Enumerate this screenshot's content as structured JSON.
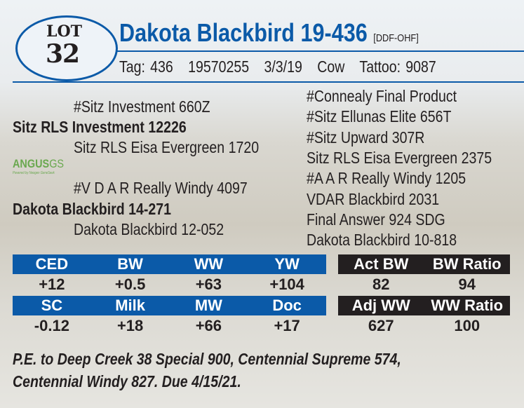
{
  "lot": {
    "label": "LOT",
    "number": "32"
  },
  "title": {
    "name": "Dakota Blackbird 19-436",
    "code": "[DDF-OHF]"
  },
  "info": {
    "tag": "Tag: 436",
    "reg": "19570255",
    "dob": "3/3/19",
    "sex": "Cow",
    "tattoo": "Tattoo: 9087"
  },
  "pedigree_left": [
    {
      "text": "#Sitz Investment 660Z",
      "bold": false
    },
    {
      "text": "Sitz RLS Investment 12226",
      "bold": true
    },
    {
      "text": "Sitz RLS Eisa Evergreen 1720",
      "bold": false
    },
    {
      "text": "#V D A R Really Windy 4097",
      "bold": false
    },
    {
      "text": "Dakota Blackbird 14-271",
      "bold": true
    },
    {
      "text": "Dakota Blackbird 12-052",
      "bold": false
    }
  ],
  "pedigree_right": [
    "#Connealy Final Product",
    "#Sitz Ellunas Elite 656T",
    "#Sitz Upward 307R",
    "Sitz RLS Eisa Evergreen 2375",
    "#A A R Really Windy 1205",
    "VDAR Blackbird 2031",
    "Final Answer 924 SDG",
    "Dakota Blackbird 10-818"
  ],
  "logo": {
    "text": "ANGUS",
    "suffix": "GS",
    "tagline": "Powered by Neogen GeneSeek"
  },
  "epd": {
    "row1": {
      "headers": [
        "CED",
        "BW",
        "WW",
        "YW"
      ],
      "values": [
        "+12",
        "+0.5",
        "+63",
        "+104"
      ]
    },
    "row2": {
      "headers": [
        "SC",
        "Milk",
        "MW",
        "Doc"
      ],
      "values": [
        "-0.12",
        "+18",
        "+66",
        "+17"
      ]
    }
  },
  "actual": {
    "row1": {
      "headers": [
        "Act BW",
        "BW Ratio"
      ],
      "values": [
        "82",
        "94"
      ]
    },
    "row2": {
      "headers": [
        "Adj WW",
        "WW Ratio"
      ],
      "values": [
        "627",
        "100"
      ]
    }
  },
  "footer": [
    "P.E. to Deep Creek 38 Special 900, Centennial Supreme 574,",
    "Centennial Windy 827. Due 4/15/21."
  ],
  "colors": {
    "blue": "#0b5aa8",
    "black": "#231f20"
  }
}
